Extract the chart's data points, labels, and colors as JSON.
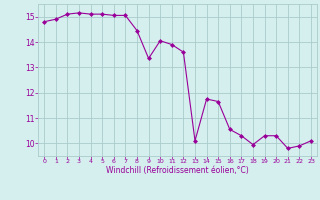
{
  "x": [
    0,
    1,
    2,
    3,
    4,
    5,
    6,
    7,
    8,
    9,
    10,
    11,
    12,
    13,
    14,
    15,
    16,
    17,
    18,
    19,
    20,
    21,
    22,
    23
  ],
  "y": [
    14.8,
    14.9,
    15.1,
    15.15,
    15.1,
    15.1,
    15.05,
    15.05,
    14.45,
    13.35,
    14.05,
    13.9,
    13.6,
    10.1,
    11.75,
    11.65,
    10.55,
    10.3,
    9.95,
    10.3,
    10.3,
    9.8,
    9.9,
    10.1
  ],
  "line_color": "#990099",
  "marker": "D",
  "marker_size": 2,
  "bg_color": "#d5eeee",
  "grid_color": "#aacccc",
  "xlabel": "Windchill (Refroidissement éolien,°C)",
  "xlabel_color": "#990099",
  "tick_color": "#990099",
  "ylim": [
    9.5,
    15.5
  ],
  "xlim": [
    -0.5,
    23.5
  ],
  "yticks": [
    10,
    11,
    12,
    13,
    14,
    15
  ],
  "xticks": [
    0,
    1,
    2,
    3,
    4,
    5,
    6,
    7,
    8,
    9,
    10,
    11,
    12,
    13,
    14,
    15,
    16,
    17,
    18,
    19,
    20,
    21,
    22,
    23
  ]
}
